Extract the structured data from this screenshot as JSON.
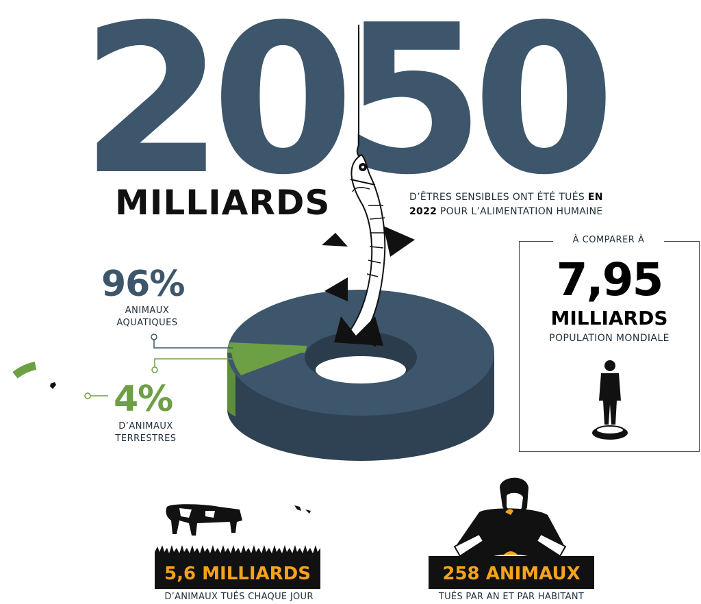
{
  "headline": {
    "number": "2050",
    "unit": "MILLIARDS",
    "subtitle_part1": "D’ÊTRES SENSIBLES ONT ÉTÉ TUÉS ",
    "subtitle_bold1": "EN",
    "subtitle_bold2": "2022",
    "subtitle_part2": " POUR  L’ALIMENTATION HUMAINE"
  },
  "breakdown": {
    "aquatic": {
      "percent_label": "96%",
      "label": "ANIMAUX AQUATIQUES",
      "value": 96
    },
    "terrestrial": {
      "percent_label": "4%",
      "label": "D’ANIMAUX TERRESTRES",
      "value": 4
    }
  },
  "compare": {
    "heading": "À COMPARER À",
    "number": "7,95",
    "unit": "MILLIARDS",
    "label": "POPULATION MONDIALE"
  },
  "daily": {
    "value_label": "5,6 MILLIARDS",
    "caption": "D’ANIMAUX TUÉS CHAQUE JOUR"
  },
  "per_person": {
    "value_label": "258 ANIMAUX",
    "caption": "TUÉS PAR AN ET PAR HABITANT"
  },
  "colors": {
    "slate": "#3d566c",
    "slate_dark": "#2f4253",
    "green": "#6da044",
    "orange": "#f7a21b",
    "black": "#111111"
  },
  "icons": [
    "fish-on-hook-icon",
    "human-figure-icon",
    "cow-icon",
    "person-eating-icon",
    "grass-icon"
  ]
}
